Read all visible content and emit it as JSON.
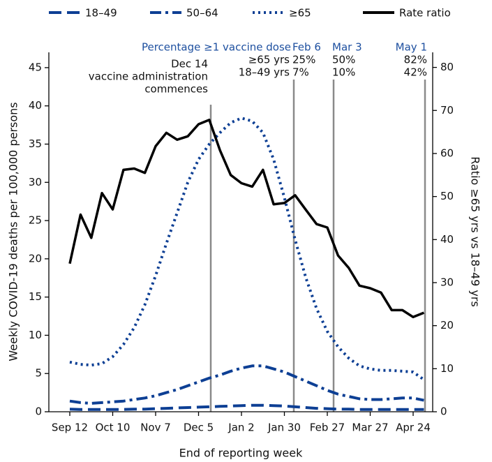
{
  "chart_data": {
    "type": "line",
    "x_label": "End of reporting week",
    "y_label": "Weekly COVID-19 deaths per 100,000 persons",
    "y2_label": "Ratio ≥65 yrs vs 18–49 yrs",
    "categories": [
      "Sep 12",
      null,
      null,
      null,
      "Oct 10",
      null,
      null,
      null,
      "Nov 7",
      null,
      null,
      null,
      "Dec 5",
      null,
      null,
      null,
      "Jan 2",
      null,
      null,
      null,
      "Jan 30",
      null,
      null,
      null,
      "Feb 27",
      null,
      null,
      null,
      "Mar 27",
      null,
      null,
      null,
      "Apr 24",
      null
    ],
    "ylim": [
      0,
      47
    ],
    "yticks": [
      0,
      5,
      10,
      15,
      20,
      25,
      30,
      35,
      40,
      45
    ],
    "y2lim": [
      0,
      83.5
    ],
    "y2ticks": [
      0,
      10,
      20,
      30,
      40,
      50,
      60,
      70,
      80
    ],
    "series": [
      {
        "name": "18–49",
        "color": "#0d3f94",
        "style": "dashed",
        "values": [
          0.35,
          0.3,
          0.3,
          0.3,
          0.3,
          0.3,
          0.35,
          0.35,
          0.4,
          0.45,
          0.5,
          0.55,
          0.6,
          0.65,
          0.7,
          0.75,
          0.8,
          0.85,
          0.85,
          0.8,
          0.75,
          0.65,
          0.55,
          0.45,
          0.4,
          0.35,
          0.35,
          0.3,
          0.3,
          0.3,
          0.3,
          0.3,
          0.3,
          0.3
        ]
      },
      {
        "name": "50–64",
        "color": "#0d3f94",
        "style": "dashdot",
        "values": [
          1.4,
          1.2,
          1.1,
          1.2,
          1.3,
          1.4,
          1.6,
          1.8,
          2.1,
          2.5,
          2.9,
          3.4,
          3.9,
          4.4,
          4.8,
          5.3,
          5.7,
          6,
          6,
          5.6,
          5.2,
          4.6,
          4,
          3.4,
          2.8,
          2.3,
          2,
          1.7,
          1.6,
          1.6,
          1.7,
          1.8,
          1.8,
          1.5
        ]
      },
      {
        "name": "≥65",
        "color": "#0d3f94",
        "style": "dotted",
        "values": [
          6.5,
          6.2,
          6.1,
          6.3,
          7.2,
          8.8,
          11,
          14,
          17.8,
          22,
          26,
          30,
          33,
          35,
          36.5,
          37.8,
          38.4,
          38,
          36.5,
          33,
          28,
          22.5,
          17.5,
          13.5,
          10.5,
          8.5,
          7,
          6,
          5.6,
          5.4,
          5.4,
          5.3,
          5.2,
          4.2
        ]
      },
      {
        "name": "Rate ratio",
        "color": "#000000",
        "style": "solid",
        "axis": "y2",
        "values": [
          34.4,
          45.8,
          40.4,
          50.8,
          47,
          56.2,
          56.5,
          55.5,
          61.7,
          64.8,
          63.2,
          64,
          66.8,
          67.8,
          60.7,
          55,
          53.1,
          52.3,
          56.2,
          48.2,
          48.5,
          50.3,
          46.9,
          43.6,
          42.8,
          36.3,
          33.4,
          29.3,
          28.7,
          27.7,
          23.6,
          23.6,
          22,
          23
        ]
      }
    ],
    "annotations": {
      "header": "Percentage ≥1 vaccine dose",
      "start": [
        "Dec 14",
        "vaccine administration",
        "commences"
      ],
      "rows": [
        "≥65 yrs",
        "18–49 yrs"
      ],
      "dates": [
        {
          "date": "Feb 6",
          "older": "25%",
          "younger": "7%"
        },
        {
          "date": "Mar 3",
          "older": "50%",
          "younger": "10%"
        },
        {
          "date": "May 1",
          "older": "82%",
          "younger": "42%"
        }
      ]
    }
  }
}
